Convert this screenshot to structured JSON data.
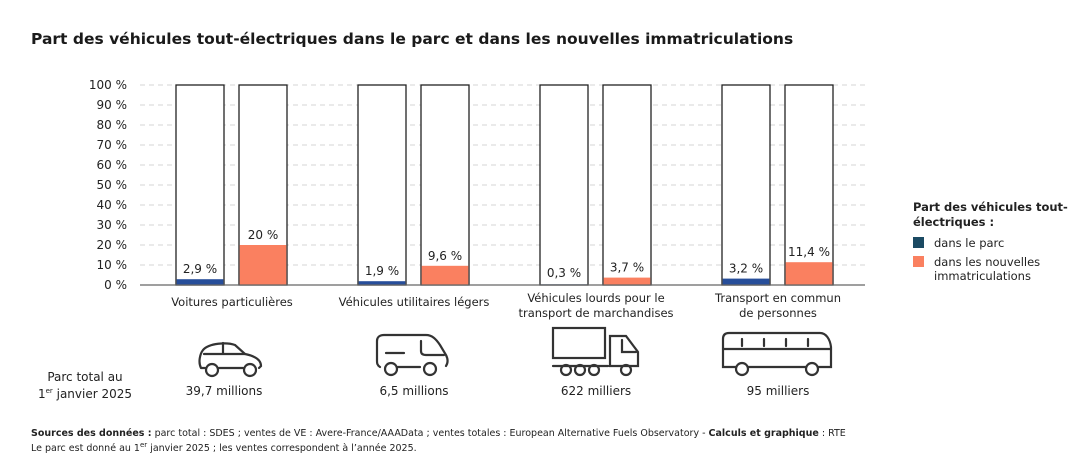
{
  "title": "Part des véhicules tout-électriques dans le parc et dans les nouvelles immatriculations",
  "chart_data": {
    "type": "bar",
    "title": "Part des véhicules tout-électriques dans le parc et dans les nouvelles immatriculations",
    "categories": [
      "Voitures particulières",
      "Véhicules utilitaires légers",
      "Véhicules lourds pour le transport de marchandises",
      "Transport en commun de personnes"
    ],
    "series": [
      {
        "name": "dans le parc",
        "values": [
          2.9,
          1.9,
          0.3,
          3.2
        ],
        "labels": [
          "2,9 %",
          "1,9 %",
          "0,3 %",
          "3,2 %"
        ],
        "color": "#274e9a"
      },
      {
        "name": "dans les nouvelles immatriculations",
        "values": [
          20,
          9.6,
          3.7,
          11.4
        ],
        "labels": [
          "20 %",
          "9,6 %",
          "3,7 %",
          "11,4 %"
        ],
        "color": "#fa8060"
      }
    ],
    "ylim": [
      0,
      100
    ],
    "yticks": [
      "0 %",
      "10 %",
      "20 %",
      "30 %",
      "40 %",
      "50 %",
      "60 %",
      "70 %",
      "80 %",
      "90 %",
      "100 %"
    ],
    "grid": true,
    "legend_title": "Part des véhicules tout-électriques :",
    "legend_position": "right",
    "legend_colors": [
      "#1b4a63",
      "#fa8060"
    ]
  },
  "categories_display": [
    {
      "line1": "Voitures particulières",
      "line2": ""
    },
    {
      "line1": "Véhicules utilitaires légers",
      "line2": ""
    },
    {
      "line1": "Véhicules lourds pour le",
      "line2": "transport de marchandises"
    },
    {
      "line1": "Transport en commun",
      "line2": "de personnes"
    }
  ],
  "parc": {
    "label_line1": "Parc total au",
    "label_sup_prefix": "1",
    "label_sup": "er",
    "label_line2": " janvier 2025",
    "totals": [
      "39,7 millions",
      "6,5 millions",
      "622 milliers",
      "95 milliers"
    ],
    "icons": [
      "car-icon",
      "van-icon",
      "truck-icon",
      "bus-icon"
    ]
  },
  "footer": {
    "sources_bold": "Sources des données :",
    "sources_text": " parc total : SDES ; ventes de VE : Avere-France/AAAData ; ventes totales :  European Alternative Fuels Observatory - ",
    "calc_bold": "Calculs et graphique",
    "calc_text": " : RTE",
    "note_a": "Le parc est donné au 1",
    "note_sup": "er",
    "note_b": " janvier 2025 ; les ventes correspondent à l’année 2025."
  }
}
